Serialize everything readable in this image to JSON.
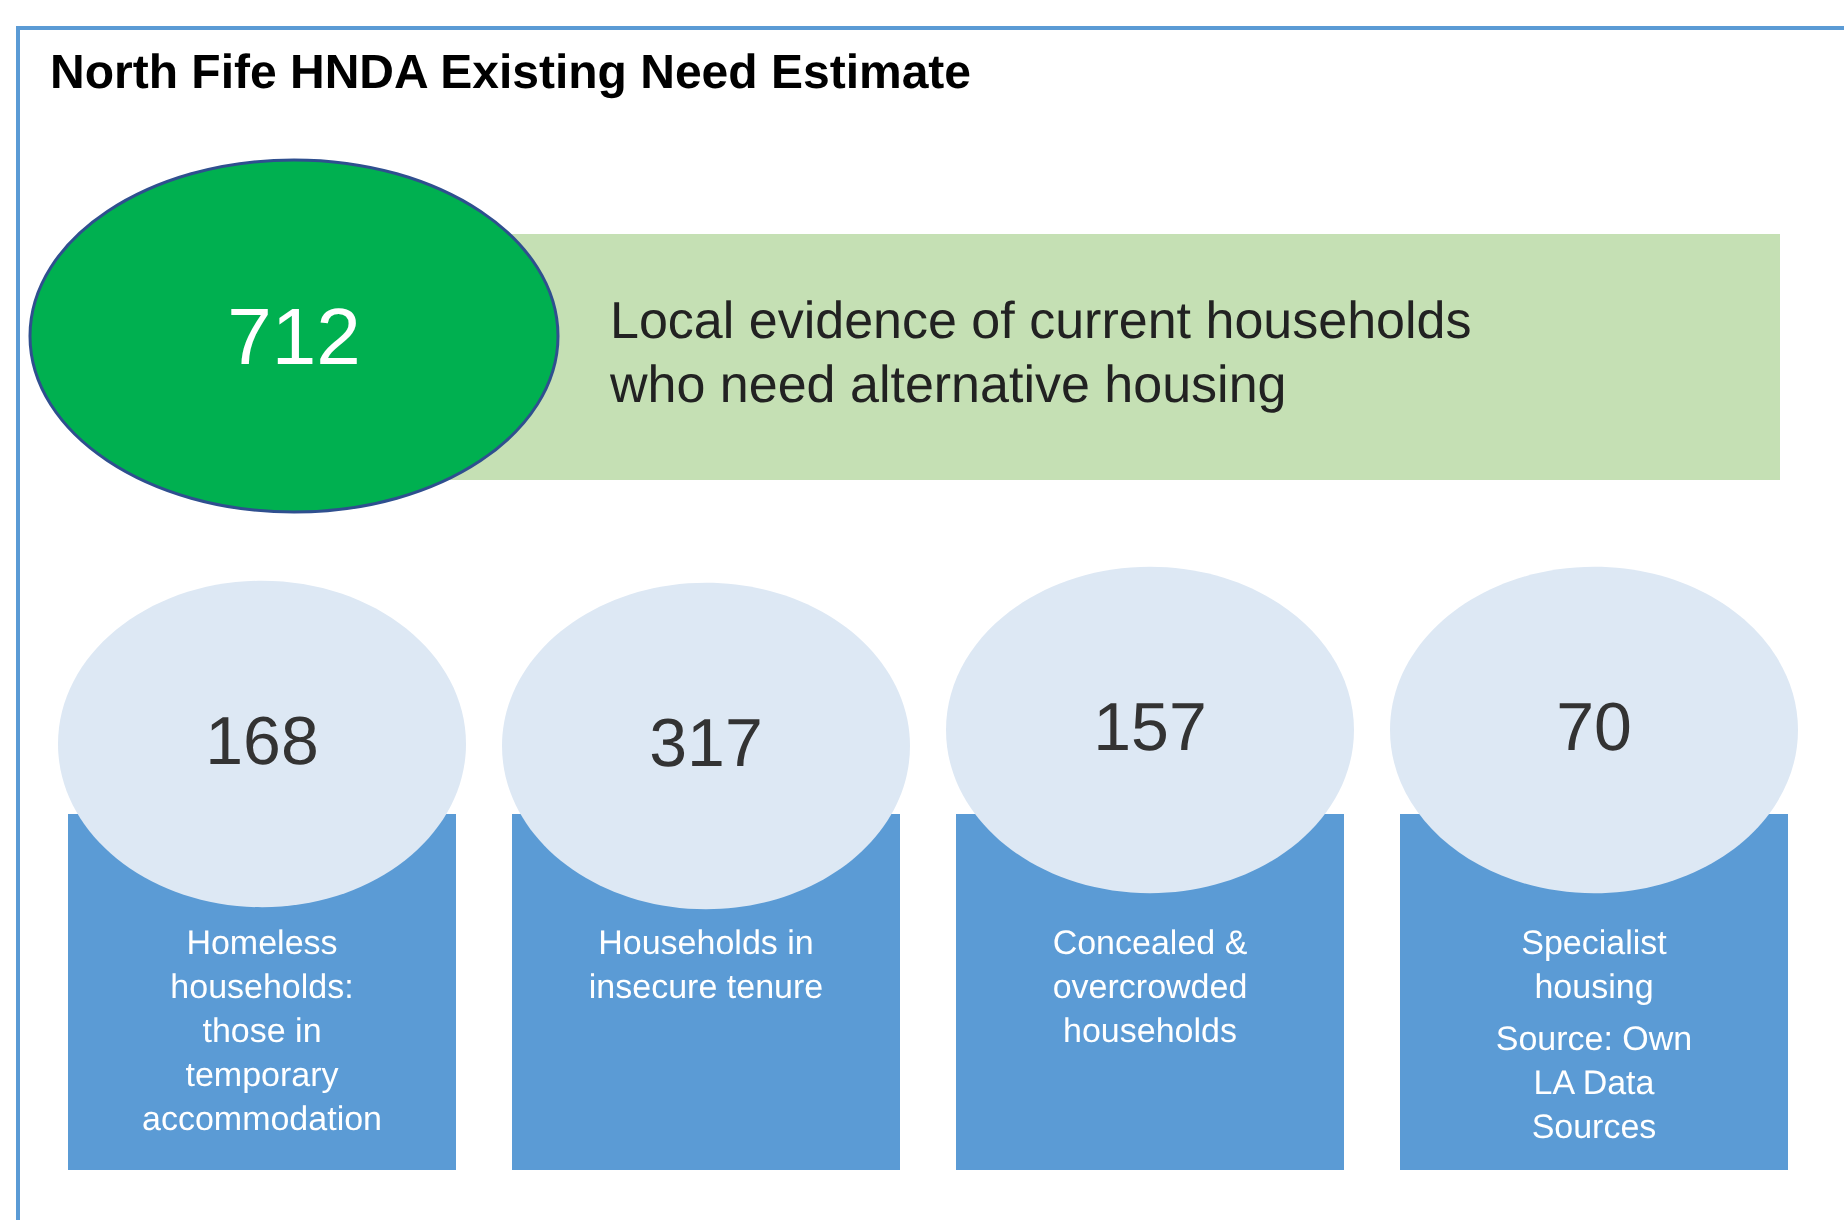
{
  "chart_data": {
    "type": "other",
    "title": "North Fife HNDA Existing Need Estimate",
    "categories": [
      "Homeless households: those in temporary accommodation",
      "Households in insecure tenure",
      "Concealed & overcrowded households",
      "Specialist housing"
    ],
    "values": [
      168,
      317,
      157,
      70
    ],
    "data_labels": true,
    "annotations": [
      "712",
      "Local evidence of current households who need alternative housing",
      "Source: Own LA Data Sources"
    ]
  }
}
